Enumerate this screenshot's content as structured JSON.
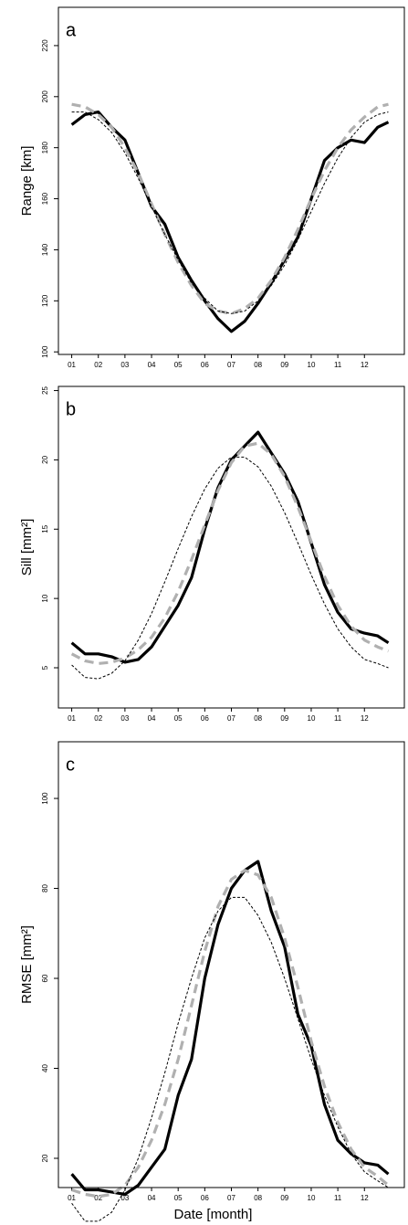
{
  "chart_data": [
    {
      "type": "line",
      "label": "a",
      "ylabel": "Range [km]",
      "x": [
        1,
        1.5,
        2,
        2.5,
        3,
        3.5,
        4,
        4.5,
        5,
        5.5,
        6,
        6.5,
        7,
        7.5,
        8,
        8.5,
        9,
        9.5,
        10,
        10.5,
        11,
        11.5,
        12,
        12.5,
        12.9
      ],
      "xlim": [
        0.5,
        13.5
      ],
      "xticks": [
        {
          "value": 1,
          "label": "01"
        },
        {
          "value": 2,
          "label": "02"
        },
        {
          "value": 3,
          "label": "03"
        },
        {
          "value": 4,
          "label": "04"
        },
        {
          "value": 5,
          "label": "05"
        },
        {
          "value": 6,
          "label": "06"
        },
        {
          "value": 7,
          "label": "07"
        },
        {
          "value": 8,
          "label": "08"
        },
        {
          "value": 9,
          "label": "09"
        },
        {
          "value": 10,
          "label": "10"
        },
        {
          "value": 11,
          "label": "11"
        },
        {
          "value": 12,
          "label": "12"
        }
      ],
      "ylim": [
        99,
        235
      ],
      "yticks": [
        100,
        120,
        140,
        160,
        180,
        200,
        220
      ],
      "series": [
        {
          "color": "#000000",
          "style": "solid",
          "values": [
            189,
            193,
            194,
            188,
            183,
            170,
            157,
            150,
            137,
            128,
            120,
            113,
            108,
            112,
            119,
            127,
            136,
            145,
            160,
            175,
            180,
            183,
            182,
            188,
            190
          ]
        },
        {
          "color": "#b0b0b0",
          "style": "dashed",
          "values": [
            197,
            196,
            193,
            188,
            180,
            170,
            158,
            146,
            135,
            126,
            119,
            116,
            115,
            117,
            121,
            128,
            137,
            148,
            160,
            171,
            180,
            187,
            192,
            196,
            197
          ]
        },
        {
          "color": "#000000",
          "style": "dotted",
          "values": [
            194,
            194,
            191,
            186,
            178,
            168,
            157,
            146,
            136,
            127,
            121,
            116,
            115,
            116,
            120,
            126,
            134,
            144,
            155,
            166,
            176,
            184,
            190,
            193,
            194
          ]
        }
      ]
    },
    {
      "type": "line",
      "label": "b",
      "ylabel": "Sill [mm²]",
      "x": [
        1,
        1.5,
        2,
        2.5,
        3,
        3.5,
        4,
        4.5,
        5,
        5.5,
        6,
        6.5,
        7,
        7.5,
        8,
        8.5,
        9,
        9.5,
        10,
        10.5,
        11,
        11.5,
        12,
        12.5,
        12.9
      ],
      "xlim": [
        0.5,
        13.5
      ],
      "xticks": [
        {
          "value": 1,
          "label": "01"
        },
        {
          "value": 2,
          "label": "02"
        },
        {
          "value": 3,
          "label": "03"
        },
        {
          "value": 4,
          "label": "04"
        },
        {
          "value": 5,
          "label": "05"
        },
        {
          "value": 6,
          "label": "06"
        },
        {
          "value": 7,
          "label": "07"
        },
        {
          "value": 8,
          "label": "08"
        },
        {
          "value": 9,
          "label": "09"
        },
        {
          "value": 10,
          "label": "10"
        },
        {
          "value": 11,
          "label": "11"
        },
        {
          "value": 12,
          "label": "12"
        }
      ],
      "ylim": [
        2.1,
        25.3
      ],
      "yticks": [
        5,
        10,
        15,
        20,
        25
      ],
      "series": [
        {
          "color": "#000000",
          "style": "solid",
          "values": [
            6.8,
            6.0,
            6.0,
            5.8,
            5.4,
            5.6,
            6.5,
            8,
            9.5,
            11.5,
            15,
            18,
            20,
            21,
            22,
            20.5,
            19,
            17,
            14,
            11,
            9,
            7.8,
            7.5,
            7.3,
            6.8
          ]
        },
        {
          "color": "#b0b0b0",
          "style": "dashed",
          "values": [
            6,
            5.5,
            5.3,
            5.4,
            5.7,
            6.3,
            7.2,
            8.6,
            10.5,
            12.8,
            15.3,
            17.8,
            19.8,
            21,
            21.2,
            20.4,
            18.8,
            16.6,
            14.1,
            11.6,
            9.5,
            8,
            7,
            6.5,
            6.2
          ]
        },
        {
          "color": "#000000",
          "style": "dotted",
          "values": [
            5.2,
            4.3,
            4.2,
            4.6,
            5.5,
            7,
            8.9,
            11.2,
            13.6,
            15.9,
            17.9,
            19.4,
            20.2,
            20.2,
            19.5,
            18.1,
            16.2,
            14,
            11.7,
            9.6,
            7.8,
            6.5,
            5.6,
            5.3,
            5.0
          ]
        }
      ]
    },
    {
      "type": "line",
      "label": "c",
      "ylabel": "RMSE [mm²]",
      "xlabel": "Date [month]",
      "x": [
        1,
        1.5,
        2,
        2.5,
        3,
        3.5,
        4,
        4.5,
        5,
        5.5,
        6,
        6.5,
        7,
        7.5,
        8,
        8.5,
        9,
        9.5,
        10,
        10.5,
        11,
        11.5,
        12,
        12.5,
        12.9
      ],
      "xlim": [
        0.5,
        13.5
      ],
      "xticks": [
        {
          "value": 1,
          "label": "01"
        },
        {
          "value": 2,
          "label": "02"
        },
        {
          "value": 3,
          "label": "03"
        },
        {
          "value": 4,
          "label": "04"
        },
        {
          "value": 5,
          "label": "05"
        },
        {
          "value": 6,
          "label": "06"
        },
        {
          "value": 7,
          "label": "07"
        },
        {
          "value": 8,
          "label": "08"
        },
        {
          "value": 9,
          "label": "09"
        },
        {
          "value": 10,
          "label": "10"
        },
        {
          "value": 11,
          "label": "11"
        },
        {
          "value": 12,
          "label": "12"
        }
      ],
      "ylim": [
        13.5,
        112.6
      ],
      "yticks": [
        20,
        40,
        60,
        80,
        100
      ],
      "series": [
        {
          "color": "#000000",
          "style": "solid",
          "values": [
            16.5,
            13,
            13,
            12.5,
            12,
            14,
            18,
            22,
            34,
            42,
            60,
            72,
            80,
            84,
            86,
            75,
            67,
            52,
            45,
            32,
            24,
            21,
            19,
            18.5,
            16.5
          ]
        },
        {
          "color": "#b0b0b0",
          "style": "dashed",
          "values": [
            13,
            12,
            11.5,
            12,
            14,
            18,
            24,
            32,
            42,
            54,
            66,
            76,
            82,
            84,
            83,
            78,
            69,
            58,
            46,
            36,
            28,
            22,
            18,
            16,
            14
          ]
        },
        {
          "color": "#000000",
          "style": "dotted",
          "values": [
            10,
            6,
            6,
            8,
            13,
            20,
            29,
            39,
            50,
            60,
            69,
            75,
            78,
            78,
            74,
            68,
            60,
            51,
            42,
            34,
            27,
            21,
            17,
            15,
            13.5
          ]
        }
      ]
    }
  ]
}
